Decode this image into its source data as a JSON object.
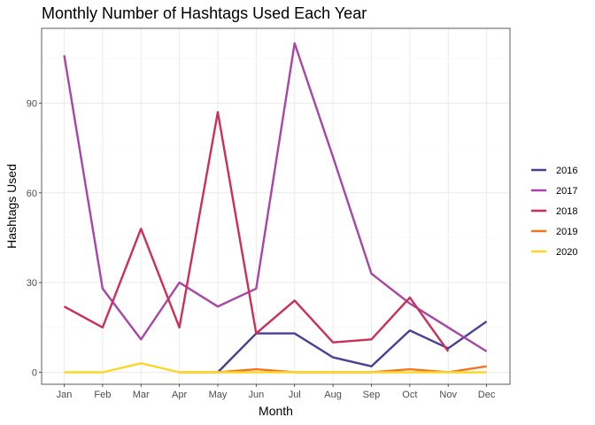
{
  "chart_data": {
    "type": "line",
    "title": "Monthly Number of Hashtags Used Each Year",
    "xlabel": "Month",
    "ylabel": "Hashtags Used",
    "categories": [
      "Jan",
      "Feb",
      "Mar",
      "Apr",
      "May",
      "Jun",
      "Jul",
      "Aug",
      "Sep",
      "Oct",
      "Nov",
      "Dec"
    ],
    "ylim": [
      -4,
      115
    ],
    "yticks": [
      0,
      30,
      60,
      90
    ],
    "grid": true,
    "legend_position": "right",
    "series": [
      {
        "name": "2016",
        "color": "#4a3f96",
        "values": [
          null,
          null,
          null,
          null,
          0,
          13,
          13,
          5,
          2,
          14,
          8,
          17
        ]
      },
      {
        "name": "2017",
        "color": "#a845a6",
        "values": [
          106,
          28,
          11,
          30,
          22,
          28,
          110,
          72,
          33,
          23,
          15,
          7
        ]
      },
      {
        "name": "2018",
        "color": "#cc2f57",
        "values": [
          22,
          15,
          48,
          15,
          87,
          13,
          24,
          10,
          11,
          25,
          7,
          null
        ]
      },
      {
        "name": "2019",
        "color": "#ef7522",
        "values": [
          null,
          null,
          null,
          0,
          0,
          1,
          0,
          0,
          0,
          1,
          0,
          2
        ]
      },
      {
        "name": "2020",
        "color": "#fbd729",
        "values": [
          0,
          0,
          3,
          0,
          0,
          0,
          0,
          0,
          0,
          0,
          0,
          0
        ]
      }
    ]
  }
}
